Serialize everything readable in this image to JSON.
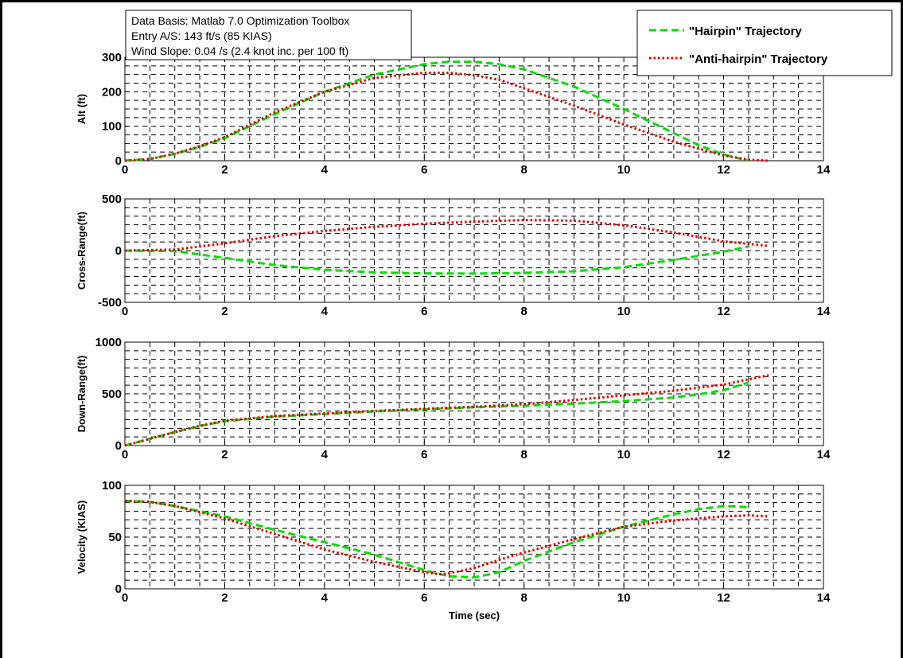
{
  "chart_data": {
    "type": "line",
    "xlabel": "Time (sec)",
    "annotation_lines": [
      "Data Basis: Matlab 7.0 Optimization Toolbox",
      "Entry A/S: 143 ft/s (85 KIAS)",
      "Wind Slope: 0.04 /s (2.4 knot inc. per 100 ft)"
    ],
    "legend": {
      "placement": "top-right",
      "entries": [
        "\"Hairpin\" Trajectory",
        "\"Anti-hairpin\" Trajectory"
      ]
    },
    "colors": {
      "hairpin": "#00dd00",
      "antihairpin": "#dd0000"
    },
    "grid": true,
    "subplots": [
      {
        "ylabel": "Alt (ft)",
        "xlim": [
          0,
          14
        ],
        "ylim": [
          0,
          300
        ],
        "xticks": [
          "0",
          "2",
          "4",
          "6",
          "8",
          "10",
          "12",
          "14"
        ],
        "yticks": [
          "0",
          "100",
          "200",
          "300"
        ],
        "series": [
          {
            "name": "\"Hairpin\" Trajectory",
            "x": [
              0,
              0.5,
              1,
              1.5,
              2,
              3,
              4,
              5,
              6,
              6.5,
              7,
              7.5,
              8,
              9,
              10,
              11,
              11.5,
              12,
              12.5
            ],
            "y": [
              0,
              5,
              20,
              40,
              65,
              135,
              200,
              250,
              280,
              287,
              287,
              280,
              265,
              215,
              150,
              80,
              45,
              18,
              0
            ]
          },
          {
            "name": "\"Anti-hairpin\" Trajectory",
            "x": [
              0,
              0.5,
              1,
              1.5,
              2,
              3,
              4,
              5,
              6,
              6.5,
              7,
              7.5,
              8,
              9,
              10,
              11,
              12,
              12.5,
              12.9
            ],
            "y": [
              0,
              5,
              20,
              42,
              68,
              140,
              200,
              240,
              255,
              255,
              248,
              235,
              210,
              160,
              105,
              55,
              15,
              3,
              0
            ]
          }
        ]
      },
      {
        "ylabel": "Cross-Range(ft)",
        "xlim": [
          0,
          14
        ],
        "ylim": [
          -500,
          500
        ],
        "xticks": [
          "0",
          "2",
          "4",
          "6",
          "8",
          "10",
          "12",
          "14"
        ],
        "yticks": [
          "-500",
          "0",
          "500"
        ],
        "series": [
          {
            "name": "\"Hairpin\" Trajectory",
            "x": [
              0,
              1,
              2,
              3,
              4,
              5,
              6,
              7,
              8,
              9,
              10,
              11,
              12,
              12.5
            ],
            "y": [
              0,
              -5,
              -70,
              -140,
              -185,
              -210,
              -220,
              -222,
              -215,
              -200,
              -160,
              -90,
              -10,
              40
            ]
          },
          {
            "name": "\"Anti-hairpin\" Trajectory",
            "x": [
              0,
              1,
              2,
              3,
              4,
              5,
              6,
              7,
              8,
              9,
              10,
              11,
              12,
              12.9
            ],
            "y": [
              0,
              10,
              70,
              140,
              190,
              230,
              260,
              280,
              295,
              290,
              245,
              175,
              90,
              45
            ]
          }
        ]
      },
      {
        "ylabel": "Down-Range(ft)",
        "xlim": [
          0,
          14
        ],
        "ylim": [
          0,
          1000
        ],
        "xticks": [
          "0",
          "2",
          "4",
          "6",
          "8",
          "10",
          "12",
          "14"
        ],
        "yticks": [
          "0",
          "500",
          "1000"
        ],
        "series": [
          {
            "name": "\"Hairpin\" Trajectory",
            "x": [
              0,
              0.5,
              1,
              1.5,
              2,
              3,
              4,
              5,
              6,
              7,
              8,
              9,
              10,
              11,
              11.5,
              12,
              12.5
            ],
            "y": [
              0,
              65,
              130,
              190,
              235,
              280,
              305,
              330,
              350,
              370,
              385,
              405,
              430,
              465,
              495,
              535,
              610
            ]
          },
          {
            "name": "\"Anti-hairpin\" Trajectory",
            "x": [
              0,
              0.5,
              1,
              1.5,
              2,
              3,
              4,
              5,
              6,
              7,
              8,
              9,
              10,
              11,
              12,
              12.9
            ],
            "y": [
              0,
              65,
              130,
              190,
              240,
              285,
              310,
              335,
              355,
              375,
              400,
              440,
              485,
              530,
              590,
              680
            ]
          }
        ]
      },
      {
        "ylabel": "Velocity (KIAS)",
        "xlim": [
          0,
          14
        ],
        "ylim": [
          0,
          100
        ],
        "xticks": [
          "0",
          "2",
          "4",
          "6",
          "8",
          "10",
          "12",
          "14"
        ],
        "yticks": [
          "0",
          "50",
          "100"
        ],
        "series": [
          {
            "name": "\"Hairpin\" Trajectory",
            "x": [
              0,
              0.5,
              1,
              2,
              3,
              4,
              5,
              6,
              6.5,
              7,
              7.5,
              8,
              9,
              10,
              11,
              11.5,
              12,
              12.5
            ],
            "y": [
              85,
              84,
              80,
              70,
              57,
              45,
              33,
              18,
              12,
              11,
              16,
              27,
              45,
              60,
              72,
              77,
              80,
              79
            ]
          },
          {
            "name": "\"Anti-hairpin\" Trajectory",
            "x": [
              0,
              0.5,
              1,
              2,
              3,
              4,
              5,
              6,
              6.3,
              6.5,
              7,
              7.5,
              8,
              9,
              10,
              11,
              12,
              12.5,
              12.9
            ],
            "y": [
              85,
              84,
              80,
              68,
              53,
              38,
              26,
              16,
              14,
              15,
              20,
              28,
              35,
              48,
              60,
              66,
              70,
              71,
              70
            ]
          }
        ]
      }
    ]
  }
}
